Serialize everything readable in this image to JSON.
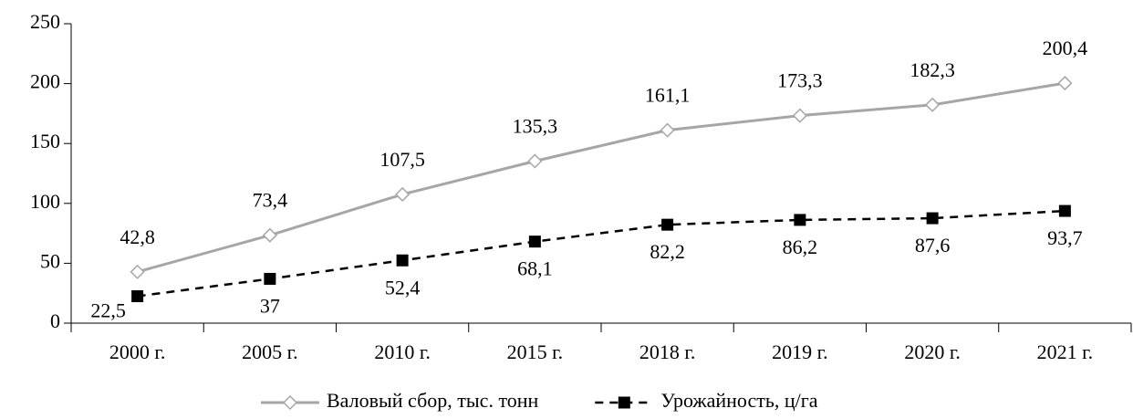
{
  "chart_data": {
    "type": "line",
    "categories": [
      "2000 г.",
      "2005 г.",
      "2010 г.",
      "2015 г.",
      "2018 г.",
      "2019 г.",
      "2020 г.",
      "2021 г."
    ],
    "series": [
      {
        "name": "Валовый сбор, тыс. тонн",
        "color": "#a6a6a6",
        "marker": "diamond",
        "dash": false,
        "values": [
          42.8,
          73.4,
          107.5,
          135.3,
          161.1,
          173.3,
          182.3,
          200.4
        ],
        "value_labels": [
          "42,8",
          "73,4",
          "107,5",
          "135,3",
          "161,1",
          "173,3",
          "182,3",
          "200,4"
        ]
      },
      {
        "name": "Урожайность, ц/га",
        "color": "#000000",
        "marker": "square",
        "dash": true,
        "values": [
          22.5,
          37,
          52.4,
          68.1,
          82.2,
          86.2,
          87.6,
          93.7
        ],
        "value_labels": [
          "22,5",
          "37",
          "52,4",
          "68,1",
          "82,2",
          "86,2",
          "87,6",
          "93,7"
        ]
      }
    ],
    "ylim": [
      0,
      250
    ],
    "yticks": [
      0,
      50,
      100,
      150,
      200,
      250
    ],
    "grid": false,
    "legend": "bottom"
  }
}
